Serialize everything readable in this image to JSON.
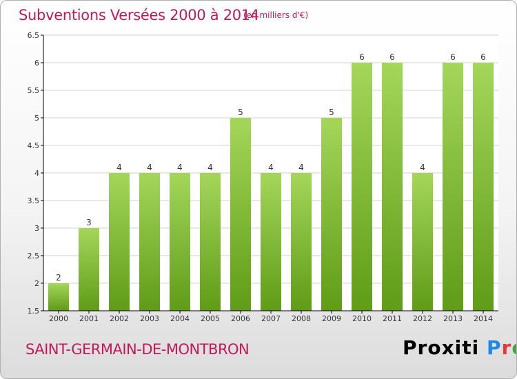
{
  "title": "Subventions Versées 2000 à 2014",
  "subtitle": "(en milliers d'€)",
  "commune": "SAINT-GERMAIN-DE-MONTBRON",
  "logo": {
    "text": "Proxiti",
    "letter_colors": [
      "#1e88e5",
      "#e53935",
      "#43a047",
      "#fb8c00",
      "#8e24aa",
      "#fdd835",
      "#00acc1"
    ]
  },
  "colors": {
    "bar_light": "#a4d65a",
    "bar_dark": "#5f9c17",
    "grid": "#d0d0d0",
    "axis": "#000000",
    "title": "#c2185b"
  },
  "chart_data": {
    "type": "bar",
    "categories": [
      "2000",
      "2001",
      "2002",
      "2003",
      "2004",
      "2005",
      "2006",
      "2007",
      "2008",
      "2009",
      "2010",
      "2011",
      "2012",
      "2013",
      "2014"
    ],
    "values": [
      2,
      3,
      4,
      4,
      4,
      4,
      5,
      4,
      4,
      5,
      6,
      6,
      4,
      6,
      6
    ],
    "data_labels": [
      "2",
      "3",
      "4",
      "4",
      "4",
      "4",
      "5",
      "4",
      "4",
      "5",
      "6",
      "6",
      "4",
      "6",
      "6"
    ],
    "ylim": [
      1.5,
      6.5
    ],
    "yticks": [
      "1.5",
      "2",
      "2.5",
      "3",
      "3.5",
      "4",
      "4.5",
      "5",
      "5.5",
      "6",
      "6.5"
    ],
    "grid": true
  }
}
